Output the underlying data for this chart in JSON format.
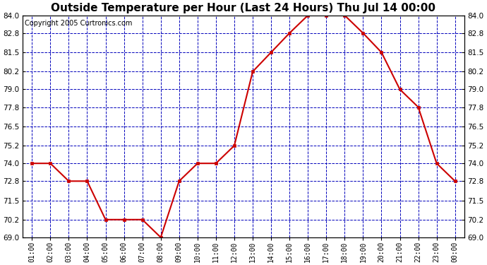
{
  "title": "Outside Temperature per Hour (Last 24 Hours) Thu Jul 14 00:00",
  "copyright": "Copyright 2005 Curtronics.com",
  "x_labels": [
    "01:00",
    "02:00",
    "03:00",
    "04:00",
    "05:00",
    "06:00",
    "07:00",
    "08:00",
    "09:00",
    "10:00",
    "11:00",
    "12:00",
    "13:00",
    "14:00",
    "15:00",
    "16:00",
    "17:00",
    "18:00",
    "19:00",
    "20:00",
    "21:00",
    "22:00",
    "23:00",
    "00:00"
  ],
  "y_values": [
    74.0,
    74.0,
    72.8,
    72.8,
    70.2,
    70.2,
    70.2,
    69.0,
    72.8,
    74.0,
    74.0,
    75.2,
    80.2,
    81.5,
    82.8,
    84.0,
    84.0,
    84.0,
    82.8,
    81.5,
    79.0,
    77.8,
    74.0,
    72.8
  ],
  "line_color": "#cc0000",
  "marker_color": "#cc0000",
  "marker": "s",
  "grid_color": "#0000bb",
  "bg_color": "#ffffff",
  "plot_bg_color": "#ffffff",
  "title_fontsize": 11,
  "copyright_fontsize": 7,
  "ylim_min": 69.0,
  "ylim_max": 84.0,
  "ytick_values": [
    69.0,
    70.2,
    71.5,
    72.8,
    74.0,
    75.2,
    76.5,
    77.8,
    79.0,
    80.2,
    81.5,
    82.8,
    84.0
  ]
}
